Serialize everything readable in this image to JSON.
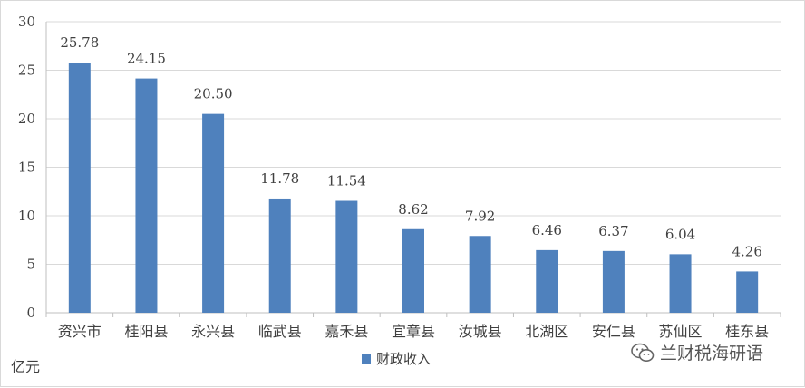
{
  "chart_data": {
    "type": "bar",
    "categories": [
      "资兴市",
      "桂阳县",
      "永兴县",
      "临武县",
      "嘉禾县",
      "宜章县",
      "汝城县",
      "北湖区",
      "安仁县",
      "苏仙区",
      "桂东县"
    ],
    "series": [
      {
        "name": "财政收入",
        "values": [
          25.78,
          24.15,
          20.5,
          11.78,
          11.54,
          8.62,
          7.92,
          6.46,
          6.37,
          6.04,
          4.26
        ],
        "labels": [
          "25.78",
          "24.15",
          "20.50",
          "11.78",
          "11.54",
          "8.62",
          "7.92",
          "6.46",
          "6.37",
          "6.04",
          "4.26"
        ]
      }
    ],
    "ylim": [
      0,
      30
    ],
    "yticks": [
      0,
      5,
      10,
      15,
      20,
      25,
      30
    ],
    "ylabel": "亿元",
    "grid": true,
    "legend": "bottom-center",
    "colors": {
      "bar": "#4f81bd",
      "grid": "#d9d9d9",
      "axis": "#bfbfbf",
      "text": "#404040"
    }
  },
  "unit_label": "亿元",
  "watermark": {
    "text": "兰财税海研语",
    "icon": "wechat-icon"
  }
}
